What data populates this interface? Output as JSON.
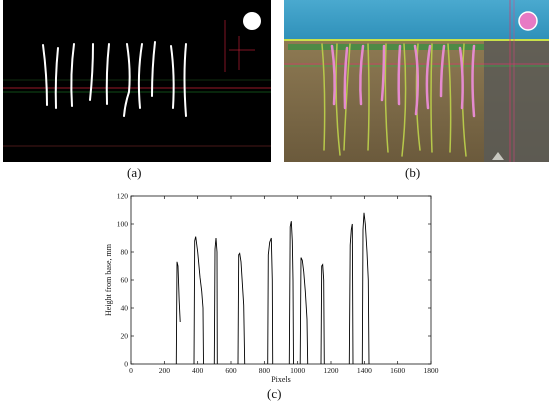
{
  "figure": {
    "captions": {
      "a": "(a)",
      "b": "(b)",
      "c": "(c)"
    }
  },
  "panel_b": {
    "colors": {
      "sky": "#3fa6c9",
      "soil": "#7c6b4b",
      "post": "#8b7a5c",
      "band": "#0f9b3a"
    }
  },
  "chart_data": {
    "type": "line",
    "title": "",
    "xlabel": "Pixels",
    "ylabel": "Height from base, mm",
    "xlim": [
      0,
      1800
    ],
    "ylim": [
      0,
      120
    ],
    "xticks": [
      0,
      200,
      400,
      600,
      800,
      1000,
      1200,
      1400,
      1600,
      1800
    ],
    "yticks": [
      0,
      20,
      40,
      60,
      80,
      100,
      120
    ],
    "grid": false,
    "series": [
      {
        "x": [
          272,
          276,
          282,
          289,
          295
        ],
        "y": [
          0,
          73,
          70,
          45,
          30
        ]
      },
      {
        "x": [
          378,
          382,
          388,
          400,
          414,
          424,
          432,
          435
        ],
        "y": [
          0,
          88,
          91,
          80,
          62,
          52,
          40,
          0
        ]
      },
      {
        "x": [
          500,
          504,
          510,
          516,
          518
        ],
        "y": [
          0,
          82,
          90,
          80,
          0
        ]
      },
      {
        "x": [
          642,
          646,
          652,
          660,
          668,
          676,
          682
        ],
        "y": [
          0,
          78,
          79,
          73,
          58,
          42,
          0
        ]
      },
      {
        "x": [
          820,
          824,
          832,
          842,
          848,
          850
        ],
        "y": [
          0,
          78,
          87,
          90,
          60,
          0
        ]
      },
      {
        "x": [
          950,
          955,
          962,
          968,
          972,
          975
        ],
        "y": [
          0,
          98,
          102,
          88,
          60,
          0
        ]
      },
      {
        "x": [
          1015,
          1020,
          1028,
          1036,
          1046,
          1056,
          1060
        ],
        "y": [
          0,
          76,
          74,
          66,
          52,
          32,
          0
        ]
      },
      {
        "x": [
          1140,
          1144,
          1150,
          1156,
          1160
        ],
        "y": [
          0,
          70,
          71,
          60,
          0
        ]
      },
      {
        "x": [
          1310,
          1315,
          1322,
          1328,
          1332
        ],
        "y": [
          0,
          85,
          96,
          100,
          0
        ]
      },
      {
        "x": [
          1388,
          1392,
          1398,
          1406,
          1416,
          1424,
          1428
        ],
        "y": [
          0,
          96,
          108,
          100,
          80,
          60,
          0
        ]
      }
    ],
    "line_color": "#000000"
  }
}
